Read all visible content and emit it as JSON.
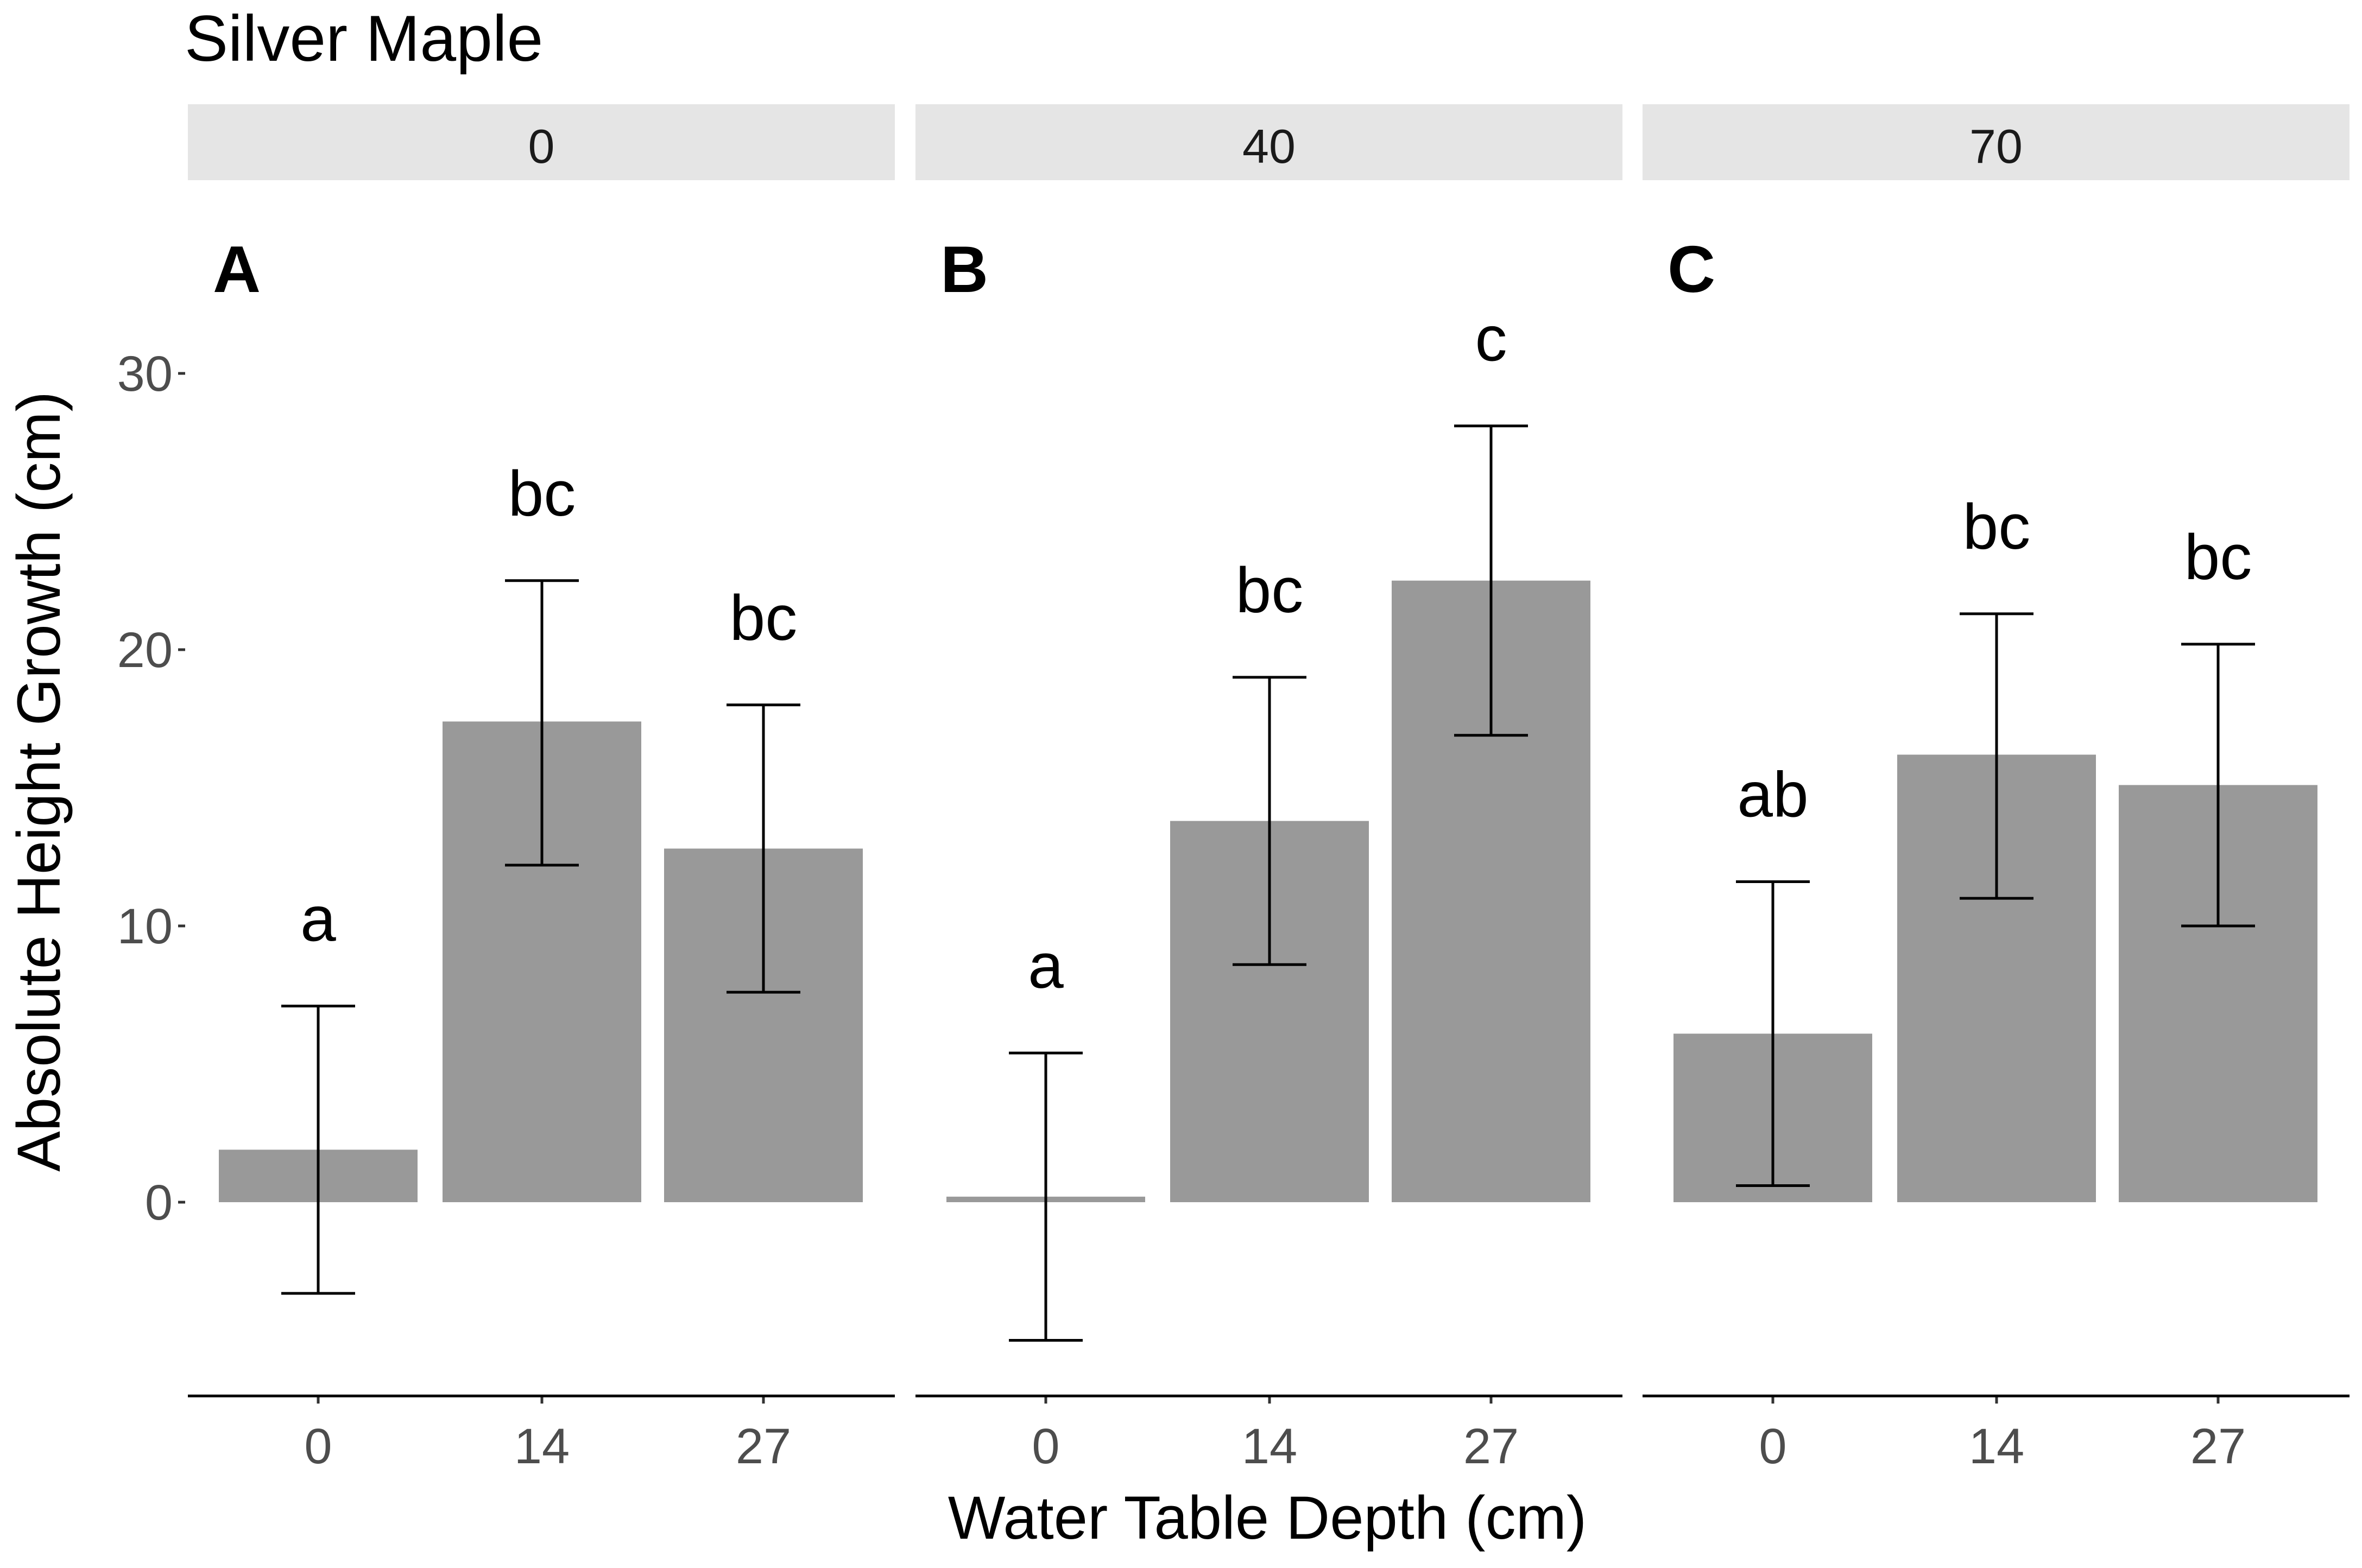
{
  "chart_data": {
    "type": "bar",
    "title": "Silver Maple",
    "xlabel": "Water Table Depth (cm)",
    "ylabel": "Absolute Height Growth (cm)",
    "ylim": [
      -7,
      30
    ],
    "yticks": [
      0,
      10,
      20,
      30
    ],
    "categories": [
      "0",
      "14",
      "27"
    ],
    "colors": {
      "bar": "#999999",
      "strip": "#e5e5e5",
      "axis": "#000000",
      "tick_label": "#4d4d4d"
    },
    "panels": [
      {
        "strip": "0",
        "letter": "A",
        "bars": [
          {
            "category": "0",
            "value": 1.9,
            "lower": -3.3,
            "upper": 7.1,
            "group": "a"
          },
          {
            "category": "14",
            "value": 17.4,
            "lower": 12.2,
            "upper": 22.5,
            "group": "bc"
          },
          {
            "category": "27",
            "value": 12.8,
            "lower": 7.6,
            "upper": 18.0,
            "group": "bc"
          }
        ]
      },
      {
        "strip": "40",
        "letter": "B",
        "bars": [
          {
            "category": "0",
            "value": 0.2,
            "lower": -5.0,
            "upper": 5.4,
            "group": "a"
          },
          {
            "category": "14",
            "value": 13.8,
            "lower": 8.6,
            "upper": 19.0,
            "group": "bc"
          },
          {
            "category": "27",
            "value": 22.5,
            "lower": 16.9,
            "upper": 28.1,
            "group": "c"
          }
        ]
      },
      {
        "strip": "70",
        "letter": "C",
        "bars": [
          {
            "category": "0",
            "value": 6.1,
            "lower": 0.6,
            "upper": 11.6,
            "group": "ab"
          },
          {
            "category": "14",
            "value": 16.2,
            "lower": 11.0,
            "upper": 21.3,
            "group": "bc"
          },
          {
            "category": "27",
            "value": 15.1,
            "lower": 10.0,
            "upper": 20.2,
            "group": "bc"
          }
        ]
      }
    ]
  }
}
